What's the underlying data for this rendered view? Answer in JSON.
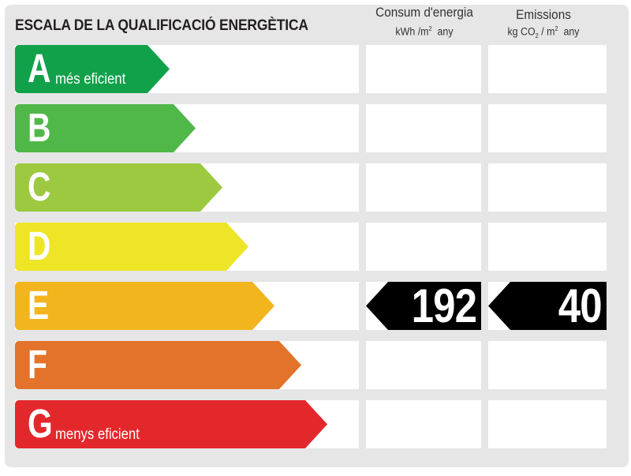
{
  "title": "ESCALA DE LA QUALIFICACIÓ ENERGÈTICA",
  "columns": {
    "consumption": {
      "title": "Consum d'energia",
      "unit_prefix": "kWh /m",
      "unit_sup": "2",
      "unit_suffix": "  any"
    },
    "emissions": {
      "title": "Emissions",
      "unit_prefix": "kg CO",
      "unit_sub": "2",
      "unit_mid": " / m",
      "unit_sup": "2",
      "unit_suffix": "  any"
    }
  },
  "rows": [
    {
      "letter": "A",
      "sublabel": "més eficient",
      "color": "#12a14b"
    },
    {
      "letter": "B",
      "sublabel": "",
      "color": "#50b848"
    },
    {
      "letter": "C",
      "sublabel": "",
      "color": "#9cc93f"
    },
    {
      "letter": "D",
      "sublabel": "",
      "color": "#eee526"
    },
    {
      "letter": "E",
      "sublabel": "",
      "color": "#f2b51d"
    },
    {
      "letter": "F",
      "sublabel": "",
      "color": "#e3732a"
    },
    {
      "letter": "G",
      "sublabel": "menys eficient",
      "color": "#e3282c"
    }
  ],
  "rating": {
    "letter": "E",
    "consumption_value": "192",
    "emissions_value": "40",
    "tag_color": "#000000"
  }
}
